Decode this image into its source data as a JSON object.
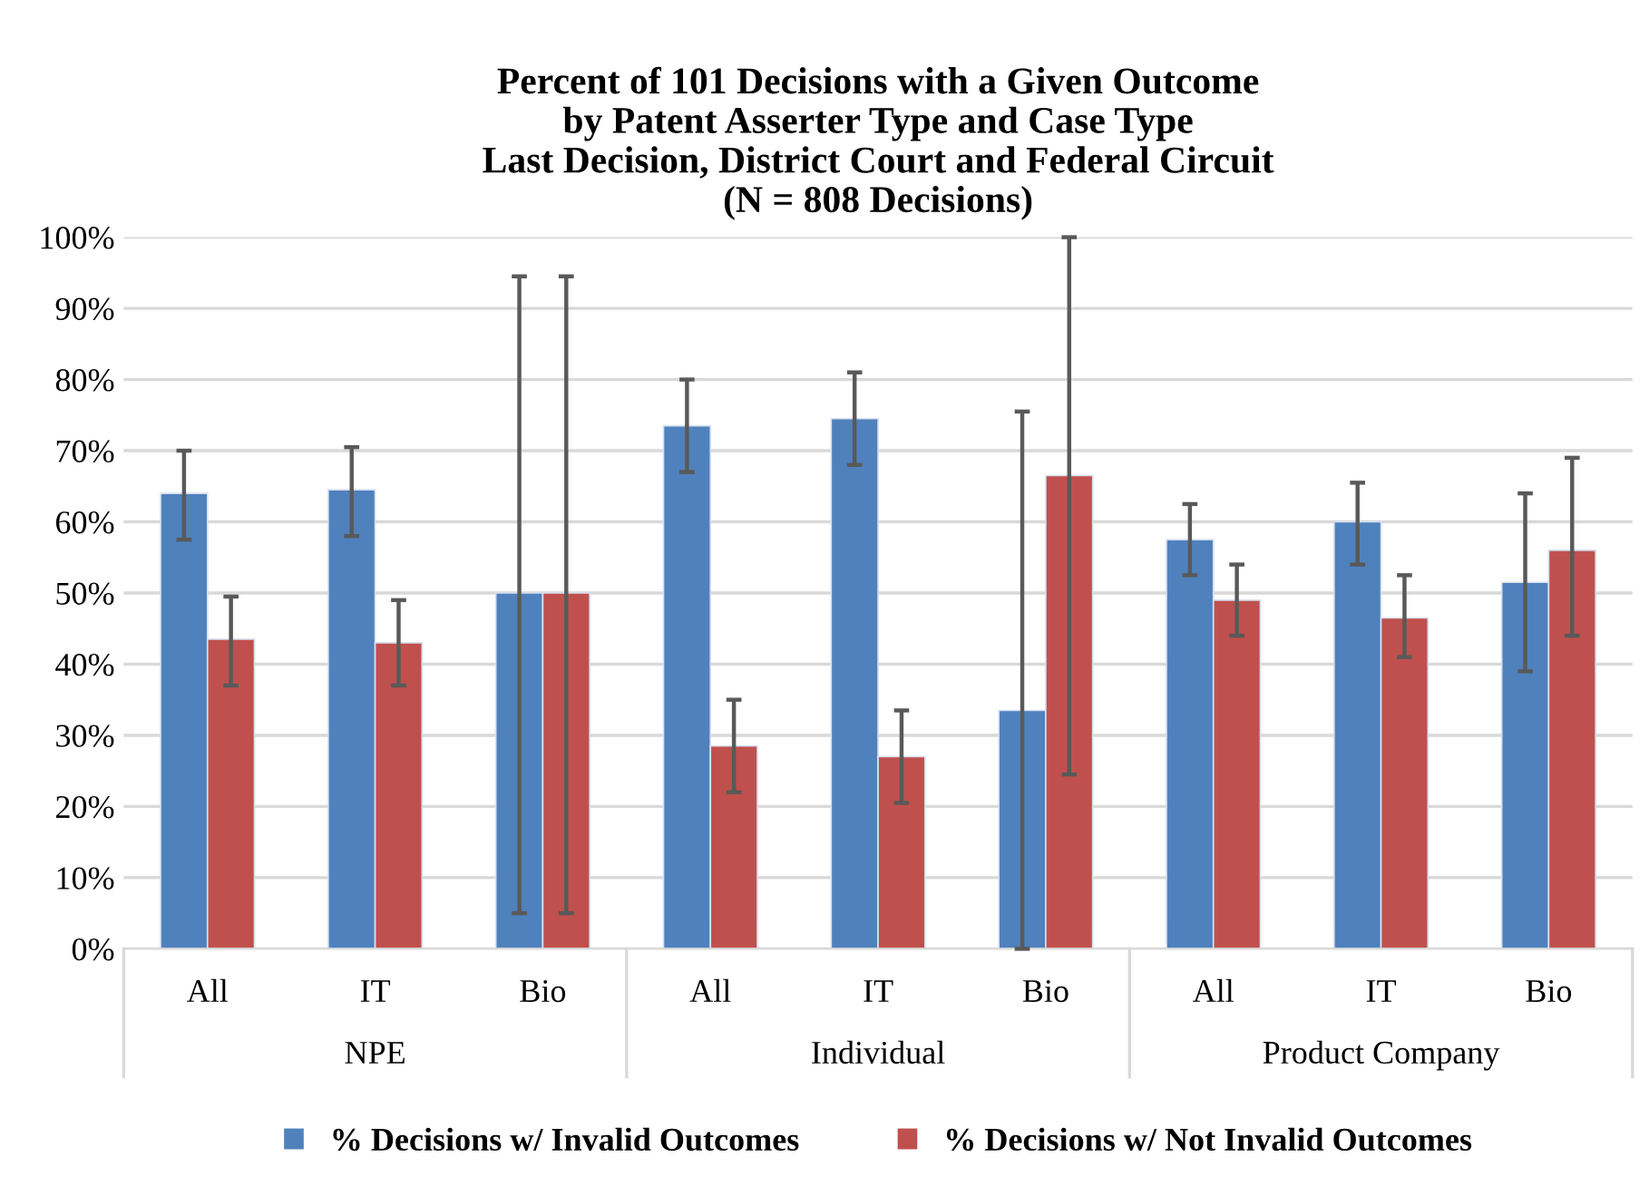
{
  "chart_data": {
    "type": "bar",
    "title": "Percent of 101 Decisions with a Given Outcome\nby Patent Asserter Type and Case Type\nLast Decision, District Court and Federal Circuit\n(N = 808 Decisions)",
    "categories": [
      "All",
      "IT",
      "Bio",
      "All",
      "IT",
      "Bio",
      "All",
      "IT",
      "Bio"
    ],
    "annotations": [
      "NPE",
      "Individual",
      "Product Company"
    ],
    "series": [
      {
        "name": "% Decisions w/ Invalid Outcomes",
        "color": "#4f81bd",
        "values": [
          64,
          64.5,
          50,
          73.5,
          74.5,
          33.5,
          57.5,
          60,
          51.5
        ],
        "errors": [
          [
            57.5,
            70
          ],
          [
            58,
            70.5
          ],
          [
            5,
            94.5
          ],
          [
            67,
            80
          ],
          [
            68,
            81
          ],
          [
            0,
            75.5
          ],
          [
            52.5,
            62.5
          ],
          [
            54,
            65.5
          ],
          [
            39,
            64
          ]
        ]
      },
      {
        "name": "% Decisions w/ Not Invalid Outcomes",
        "color": "#c0504d",
        "values": [
          43.5,
          43,
          50,
          28.5,
          27,
          66.5,
          49,
          46.5,
          56
        ],
        "errors": [
          [
            37,
            49.5
          ],
          [
            37,
            49
          ],
          [
            5,
            94.5
          ],
          [
            22,
            35
          ],
          [
            20.5,
            33.5
          ],
          [
            24.5,
            100
          ],
          [
            44,
            54
          ],
          [
            41,
            52.5
          ],
          [
            44,
            69
          ]
        ]
      }
    ],
    "ylim": [
      0,
      100
    ],
    "yticks": [
      {
        "value": 0,
        "label": "0%"
      },
      {
        "value": 10,
        "label": "10%"
      },
      {
        "value": 20,
        "label": "20%"
      },
      {
        "value": 30,
        "label": "30%"
      },
      {
        "value": 40,
        "label": "40%"
      },
      {
        "value": 50,
        "label": "50%"
      },
      {
        "value": 60,
        "label": "60%"
      },
      {
        "value": 70,
        "label": "70%"
      },
      {
        "value": 80,
        "label": "80%"
      },
      {
        "value": 90,
        "label": "90%"
      },
      {
        "value": 100,
        "label": "100%"
      }
    ],
    "grid": "y",
    "legend": "bottom"
  }
}
